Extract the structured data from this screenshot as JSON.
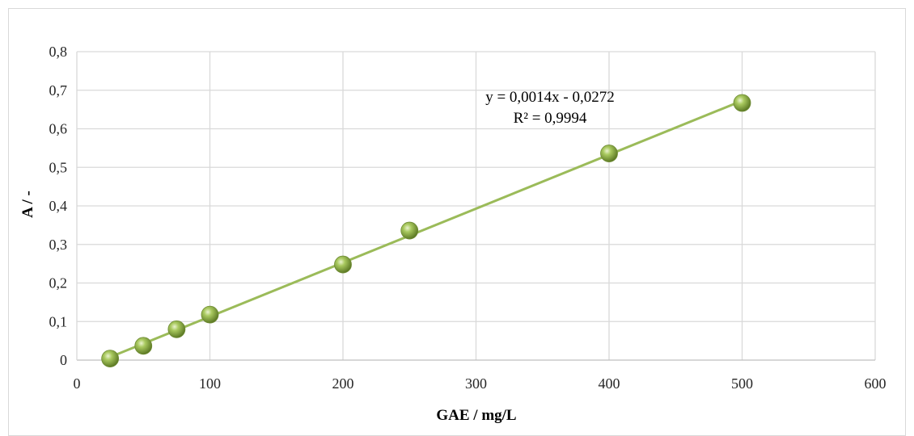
{
  "chart_data": {
    "type": "scatter",
    "xlabel": "GAE / mg/L",
    "ylabel": "A / -",
    "xlim": [
      0,
      600
    ],
    "ylim": [
      0,
      0.8
    ],
    "xticks": [
      0,
      100,
      200,
      300,
      400,
      500,
      600
    ],
    "xtick_labels": [
      "0",
      "100",
      "200",
      "300",
      "400",
      "500",
      "600"
    ],
    "yticks": [
      0,
      0.1,
      0.2,
      0.3,
      0.4,
      0.5,
      0.6,
      0.7,
      0.8
    ],
    "ytick_labels": [
      "0",
      "0,1",
      "0,2",
      "0,3",
      "0,4",
      "0,5",
      "0,6",
      "0,7",
      "0,8"
    ],
    "grid": true,
    "legend": "none",
    "series": [
      {
        "x": [
          25,
          50,
          75,
          100,
          200,
          250,
          400,
          500
        ],
        "y": [
          0.004,
          0.037,
          0.08,
          0.118,
          0.248,
          0.336,
          0.536,
          0.667
        ],
        "color": "#9bbb59"
      }
    ],
    "trendline": {
      "type": "linear",
      "slope": 0.0014,
      "intercept": -0.0272,
      "x_range": [
        25,
        500
      ],
      "color": "#9bbb59",
      "equation_text": "y = 0,0014x - 0,0272",
      "r2_text": "R² = 0,9994"
    }
  }
}
